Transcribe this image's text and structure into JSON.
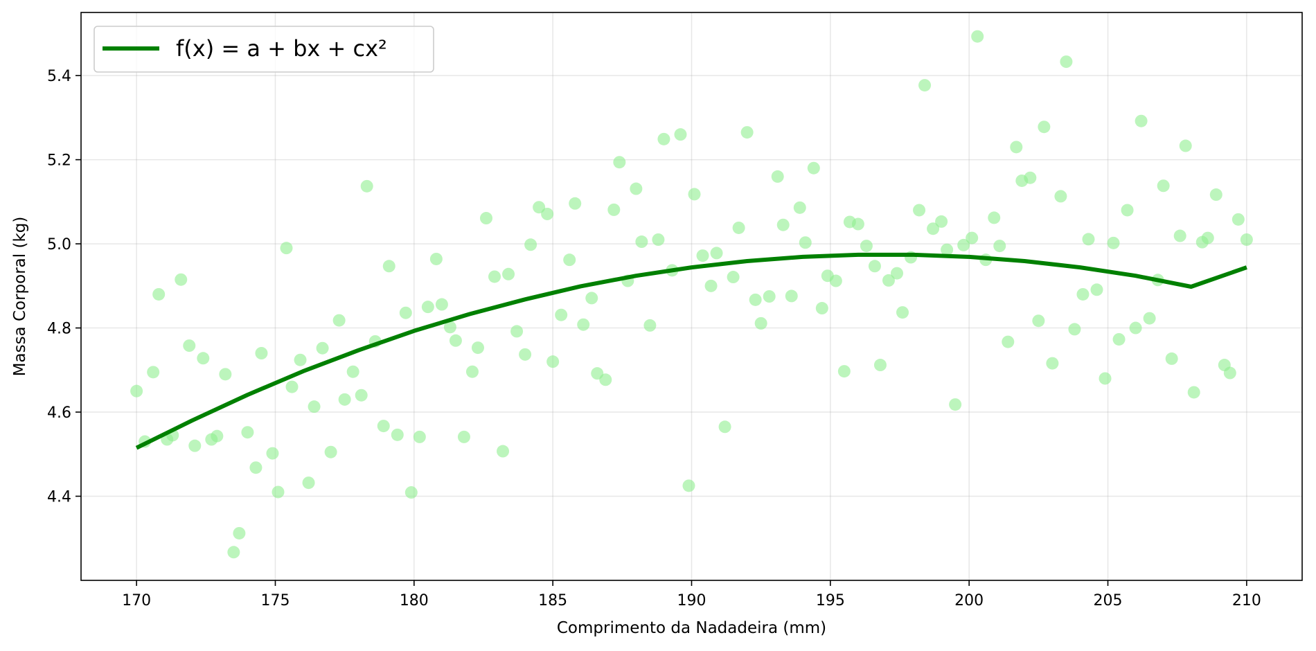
{
  "chart_data": {
    "type": "scatter",
    "title": "",
    "xlabel": "Comprimento da Nadadeira (mm)",
    "ylabel": "Massa Corporal (kg)",
    "xlim": [
      168,
      212
    ],
    "ylim": [
      4.2,
      5.55
    ],
    "x_ticks": [
      170,
      175,
      180,
      185,
      190,
      195,
      200,
      205,
      210
    ],
    "y_ticks": [
      4.4,
      4.6,
      4.8,
      5.0,
      5.2,
      5.4
    ],
    "x_tick_labels": [
      "170",
      "175",
      "180",
      "185",
      "190",
      "195",
      "200",
      "205",
      "210"
    ],
    "y_tick_labels": [
      "4.4",
      "4.6",
      "4.8",
      "5.0",
      "5.2",
      "5.4"
    ],
    "grid": true,
    "legend_position": "top-left",
    "colors": {
      "points": "#90ee90",
      "fit": "#008000"
    },
    "fit": {
      "name": "f(x) = a + bx + cx²",
      "x": [
        170,
        172,
        174,
        176,
        178,
        180,
        182,
        184,
        186,
        188,
        190,
        192,
        194,
        196,
        198,
        200,
        202,
        204,
        206,
        208,
        210
      ],
      "y": [
        4.515,
        4.58,
        4.641,
        4.697,
        4.747,
        4.793,
        4.833,
        4.868,
        4.899,
        4.924,
        4.944,
        4.959,
        4.969,
        4.974,
        4.974,
        4.969,
        4.959,
        4.944,
        4.924,
        4.898,
        4.944
      ]
    },
    "points": [
      [
        170.0,
        4.65
      ],
      [
        170.3,
        4.53
      ],
      [
        170.6,
        4.695
      ],
      [
        170.8,
        4.88
      ],
      [
        171.1,
        4.535
      ],
      [
        171.3,
        4.545
      ],
      [
        171.6,
        4.915
      ],
      [
        171.9,
        4.758
      ],
      [
        172.1,
        4.52
      ],
      [
        172.4,
        4.728
      ],
      [
        172.7,
        4.535
      ],
      [
        172.9,
        4.543
      ],
      [
        173.2,
        4.69
      ],
      [
        173.5,
        4.267
      ],
      [
        173.7,
        4.312
      ],
      [
        174.0,
        4.552
      ],
      [
        174.3,
        4.468
      ],
      [
        174.5,
        4.74
      ],
      [
        174.9,
        4.502
      ],
      [
        175.1,
        4.41
      ],
      [
        175.4,
        4.99
      ],
      [
        175.6,
        4.66
      ],
      [
        175.9,
        4.724
      ],
      [
        176.2,
        4.432
      ],
      [
        176.4,
        4.613
      ],
      [
        176.7,
        4.752
      ],
      [
        177.0,
        4.505
      ],
      [
        177.3,
        4.818
      ],
      [
        177.5,
        4.63
      ],
      [
        177.8,
        4.696
      ],
      [
        178.1,
        4.64
      ],
      [
        178.3,
        5.137
      ],
      [
        178.6,
        4.768
      ],
      [
        178.9,
        4.567
      ],
      [
        179.1,
        4.947
      ],
      [
        179.4,
        4.546
      ],
      [
        179.7,
        4.836
      ],
      [
        179.9,
        4.409
      ],
      [
        180.2,
        4.541
      ],
      [
        180.5,
        4.85
      ],
      [
        180.8,
        4.964
      ],
      [
        181.0,
        4.856
      ],
      [
        181.3,
        4.802
      ],
      [
        181.5,
        4.77
      ],
      [
        181.8,
        4.541
      ],
      [
        182.1,
        4.696
      ],
      [
        182.3,
        4.753
      ],
      [
        182.6,
        5.061
      ],
      [
        182.9,
        4.922
      ],
      [
        183.2,
        4.507
      ],
      [
        183.4,
        4.928
      ],
      [
        183.7,
        4.792
      ],
      [
        184.0,
        4.737
      ],
      [
        184.2,
        4.998
      ],
      [
        184.5,
        5.087
      ],
      [
        184.8,
        5.071
      ],
      [
        185.0,
        4.72
      ],
      [
        185.3,
        4.831
      ],
      [
        185.6,
        4.962
      ],
      [
        185.8,
        5.096
      ],
      [
        186.1,
        4.808
      ],
      [
        186.4,
        4.871
      ],
      [
        186.6,
        4.692
      ],
      [
        186.9,
        4.677
      ],
      [
        187.2,
        5.081
      ],
      [
        187.4,
        5.194
      ],
      [
        187.7,
        4.912
      ],
      [
        188.0,
        5.131
      ],
      [
        188.2,
        5.005
      ],
      [
        188.5,
        4.806
      ],
      [
        188.8,
        5.01
      ],
      [
        189.0,
        5.249
      ],
      [
        189.3,
        4.937
      ],
      [
        189.6,
        5.26
      ],
      [
        189.9,
        4.425
      ],
      [
        190.1,
        5.118
      ],
      [
        190.4,
        4.972
      ],
      [
        190.7,
        4.9
      ],
      [
        190.9,
        4.978
      ],
      [
        191.2,
        4.565
      ],
      [
        191.5,
        4.921
      ],
      [
        191.7,
        5.038
      ],
      [
        192.0,
        5.265
      ],
      [
        192.3,
        4.867
      ],
      [
        192.5,
        4.811
      ],
      [
        192.8,
        4.875
      ],
      [
        193.1,
        5.16
      ],
      [
        193.3,
        5.045
      ],
      [
        193.6,
        4.876
      ],
      [
        193.9,
        5.086
      ],
      [
        194.1,
        5.003
      ],
      [
        194.4,
        5.18
      ],
      [
        194.7,
        4.847
      ],
      [
        194.9,
        4.924
      ],
      [
        195.2,
        4.912
      ],
      [
        195.5,
        4.697
      ],
      [
        195.7,
        5.052
      ],
      [
        196.0,
        5.047
      ],
      [
        196.3,
        4.995
      ],
      [
        196.6,
        4.947
      ],
      [
        196.8,
        4.712
      ],
      [
        197.1,
        4.913
      ],
      [
        197.4,
        4.93
      ],
      [
        197.6,
        4.837
      ],
      [
        197.9,
        4.968
      ],
      [
        198.2,
        5.08
      ],
      [
        198.4,
        5.377
      ],
      [
        198.7,
        5.036
      ],
      [
        199.0,
        5.053
      ],
      [
        199.2,
        4.986
      ],
      [
        199.5,
        4.618
      ],
      [
        199.8,
        4.997
      ],
      [
        200.1,
        5.014
      ],
      [
        200.3,
        5.493
      ],
      [
        200.6,
        4.962
      ],
      [
        200.9,
        5.062
      ],
      [
        201.1,
        4.995
      ],
      [
        201.4,
        4.767
      ],
      [
        201.7,
        5.23
      ],
      [
        201.9,
        5.15
      ],
      [
        202.2,
        5.157
      ],
      [
        202.5,
        4.817
      ],
      [
        202.7,
        5.278
      ],
      [
        203.0,
        4.716
      ],
      [
        203.3,
        5.113
      ],
      [
        203.5,
        5.433
      ],
      [
        203.8,
        4.797
      ],
      [
        204.1,
        4.88
      ],
      [
        204.3,
        5.011
      ],
      [
        204.6,
        4.891
      ],
      [
        204.9,
        4.68
      ],
      [
        205.2,
        5.002
      ],
      [
        205.4,
        4.773
      ],
      [
        205.7,
        5.08
      ],
      [
        206.0,
        4.8
      ],
      [
        206.2,
        5.292
      ],
      [
        206.5,
        4.823
      ],
      [
        206.8,
        4.914
      ],
      [
        207.0,
        5.138
      ],
      [
        207.3,
        4.727
      ],
      [
        207.6,
        5.019
      ],
      [
        207.8,
        5.233
      ],
      [
        208.1,
        4.647
      ],
      [
        208.4,
        5.004
      ],
      [
        208.6,
        5.014
      ],
      [
        208.9,
        5.117
      ],
      [
        209.2,
        4.712
      ],
      [
        209.4,
        4.693
      ],
      [
        209.7,
        5.058
      ],
      [
        210.0,
        5.01
      ]
    ]
  }
}
